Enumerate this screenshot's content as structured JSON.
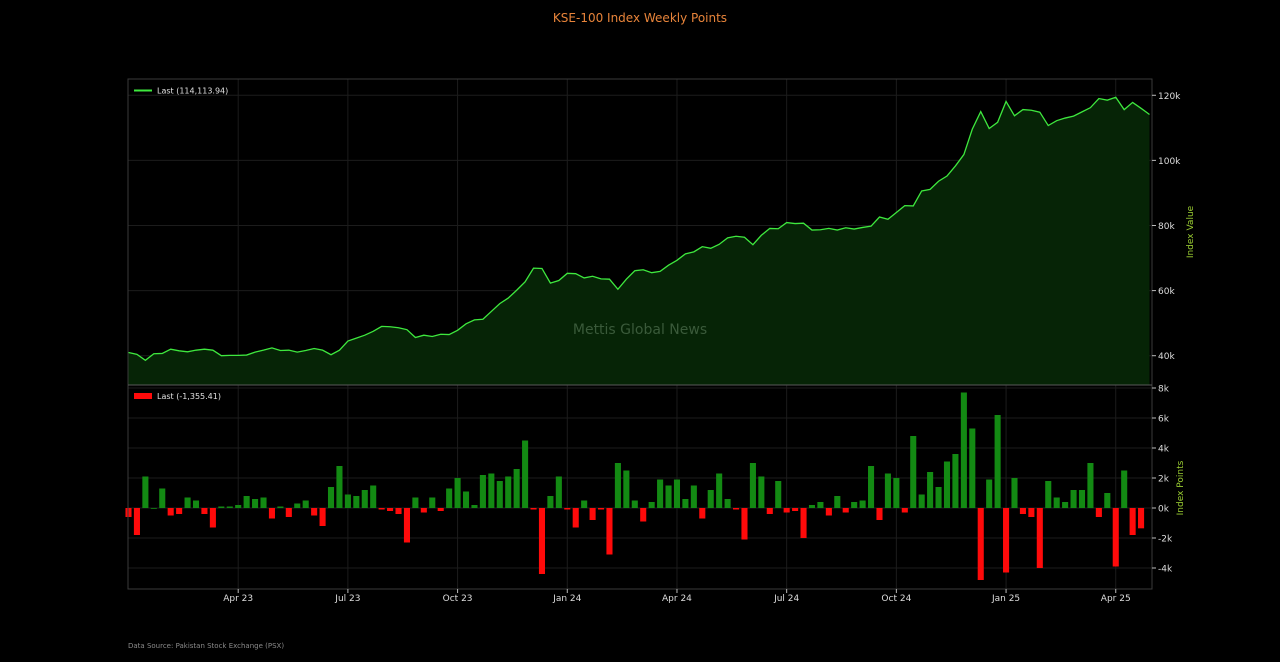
{
  "page": {
    "title": "KSE-100 Index Weekly Points",
    "source": "Data Source: Pakistan Stock Exchange (PSX)",
    "watermark": "Mettis Global News"
  },
  "colors": {
    "title": "#e8843a",
    "line": "#3ee83e",
    "area": "#062406",
    "up": "#138a13",
    "down": "#ff0a0a",
    "axis_title": "#9acd32",
    "grid": "#1c1c1c"
  },
  "chart_data": [
    {
      "type": "area",
      "ylabel": "Index Value",
      "legend": "Last (114,113.94)",
      "legend_position": "top-left",
      "ylim": [
        31000,
        125000
      ],
      "yticks": [
        40000,
        60000,
        80000,
        100000,
        120000
      ],
      "ytick_labels": [
        "40k",
        "60k",
        "80k",
        "100k",
        "120k"
      ],
      "grid": true,
      "start": "2023-01-06",
      "x_ticks": [
        {
          "label": "Apr 23",
          "week": 13
        },
        {
          "label": "Jul 23",
          "week": 26
        },
        {
          "label": "Oct 23",
          "week": 39
        },
        {
          "label": "Jan 24",
          "week": 52
        },
        {
          "label": "Apr 24",
          "week": 65
        },
        {
          "label": "Jul 24",
          "week": 78
        },
        {
          "label": "Oct 24",
          "week": 91
        },
        {
          "label": "Jan 25",
          "week": 104
        },
        {
          "label": "Apr 25",
          "week": 117
        }
      ],
      "values": [
        41000,
        40400,
        38600,
        40600,
        40700,
        42000,
        41500,
        41200,
        41700,
        42000,
        41700,
        40000,
        40100,
        40100,
        40200,
        41100,
        41700,
        42400,
        41600,
        41700,
        41100,
        41600,
        42200,
        41700,
        40300,
        41700,
        44500,
        45400,
        46300,
        47500,
        49000,
        48900,
        48600,
        48000,
        45600,
        46300,
        45900,
        46600,
        46500,
        47800,
        49800,
        51000,
        51200,
        53600,
        56000,
        57700,
        60100,
        62700,
        66900,
        66800,
        62300,
        63100,
        65300,
        65200,
        63900,
        64400,
        63600,
        63500,
        60400,
        63500,
        66100,
        66400,
        65500,
        65900,
        67800,
        69300,
        71300,
        71900,
        73500,
        73000,
        74200,
        76200,
        76700,
        76400,
        74100,
        77000,
        79100,
        79000,
        80900,
        80600,
        80700,
        78600,
        78700,
        79100,
        78600,
        79300,
        78900,
        79400,
        79800,
        82600,
        81900,
        84000,
        86100,
        86000,
        90600,
        91100,
        93600,
        95200,
        98300,
        101800,
        109600,
        115000,
        109800,
        111700,
        118100,
        113700,
        115600,
        115400,
        114800,
        110700,
        112200,
        113000,
        113600,
        114900,
        116200,
        119000,
        118500,
        119400,
        115600,
        117800,
        116000,
        114100
      ]
    },
    {
      "type": "bar",
      "ylabel": "Index Points",
      "legend": "Last (-1,355.41)",
      "legend_position": "top-left",
      "ylim": [
        -5400,
        8200
      ],
      "yticks": [
        -4000,
        -2000,
        0,
        2000,
        4000,
        6000,
        8000
      ],
      "ytick_labels": [
        "-4k",
        "-2k",
        "0k",
        "2k",
        "4k",
        "6k",
        "8k"
      ],
      "grid": true,
      "values": [
        -600,
        -1800,
        2100,
        0,
        1300,
        -500,
        -400,
        700,
        500,
        -400,
        -1300,
        100,
        100,
        200,
        800,
        600,
        700,
        -700,
        100,
        -600,
        300,
        500,
        -500,
        -1200,
        1400,
        2800,
        900,
        800,
        1200,
        1500,
        -100,
        -200,
        -400,
        -2300,
        700,
        -300,
        700,
        -200,
        1300,
        2000,
        1100,
        200,
        2200,
        2300,
        1800,
        2100,
        2600,
        4500,
        -100,
        -4400,
        800,
        2100,
        -100,
        -1300,
        500,
        -800,
        -100,
        -3100,
        3000,
        2500,
        500,
        -900,
        400,
        1900,
        1500,
        1900,
        600,
        1500,
        -700,
        1200,
        2300,
        600,
        -100,
        -2100,
        3000,
        2100,
        -400,
        1800,
        -300,
        -200,
        -2000,
        200,
        400,
        -500,
        800,
        -300,
        400,
        500,
        2800,
        -800,
        2300,
        2000,
        -300,
        4800,
        900,
        2400,
        1400,
        3100,
        3600,
        7700,
        5300,
        -4800,
        1900,
        6200,
        -4300,
        2000,
        -400,
        -600,
        -4000,
        1800,
        700,
        400,
        1200,
        1200,
        3000,
        -600,
        1000,
        -3900,
        2500,
        -1800,
        -1355
      ]
    }
  ]
}
